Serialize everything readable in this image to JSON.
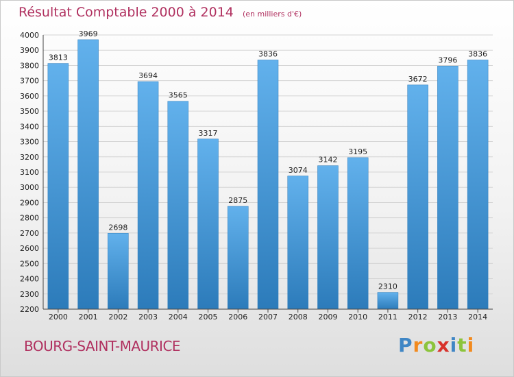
{
  "title": "Résultat Comptable 2000 à 2014",
  "subtitle": "(en milliers d'€)",
  "commune": "BOURG-SAINT-MAURICE",
  "brand": "Proxiti",
  "colors": {
    "bar_light": "#62b1ec",
    "bar_dark": "#2c7bba",
    "title": "#b0305f",
    "grid": "#d4d4d4",
    "axis_text": "#222222"
  },
  "chart_data": {
    "type": "bar",
    "categories": [
      "2000",
      "2001",
      "2002",
      "2003",
      "2004",
      "2005",
      "2006",
      "2007",
      "2008",
      "2009",
      "2010",
      "2011",
      "2012",
      "2013",
      "2014"
    ],
    "values": [
      3813,
      3969,
      2698,
      3694,
      3565,
      3317,
      2875,
      3836,
      3074,
      3142,
      3195,
      2310,
      3672,
      3796,
      3836
    ],
    "data_labels": [
      "3813",
      "3969",
      "2698",
      "3694",
      "3565",
      "3317",
      "2875",
      "3836",
      "3074",
      "3142",
      "3195",
      "2310",
      "3672",
      "3796",
      "3836"
    ],
    "title": "Résultat Comptable 2000 à 2014",
    "xlabel": "",
    "ylabel": "",
    "ylim": [
      2200,
      4000
    ],
    "yticks": [
      2200,
      2300,
      2400,
      2500,
      2600,
      2700,
      2800,
      2900,
      3000,
      3100,
      3200,
      3300,
      3400,
      3500,
      3600,
      3700,
      3800,
      3900,
      4000
    ],
    "grid": true,
    "legend": "none"
  }
}
